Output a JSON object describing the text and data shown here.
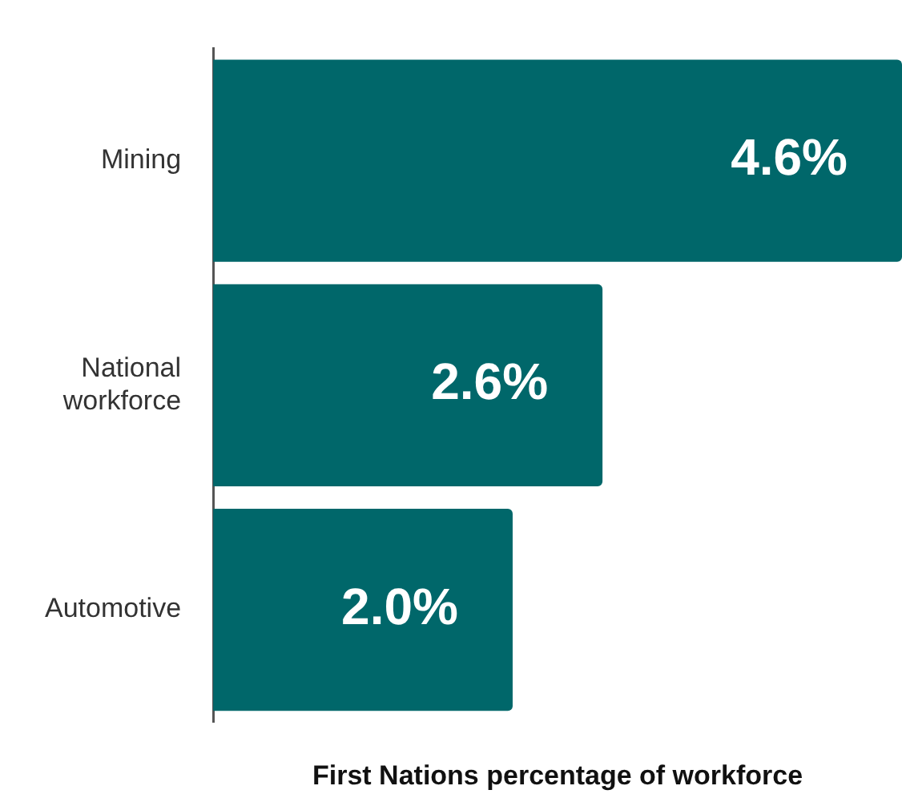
{
  "chart_data": {
    "type": "bar",
    "orientation": "horizontal",
    "relative": false,
    "xlabel": "First Nations percentage of workforce",
    "categories": [
      "Mining",
      "National workforce",
      "Automotive"
    ],
    "values": [
      4.6,
      2.6,
      2.0
    ],
    "value_labels": [
      "4.6%",
      "2.6%",
      "2.0%"
    ],
    "color": "#00676a",
    "grid": false,
    "legend": false
  }
}
